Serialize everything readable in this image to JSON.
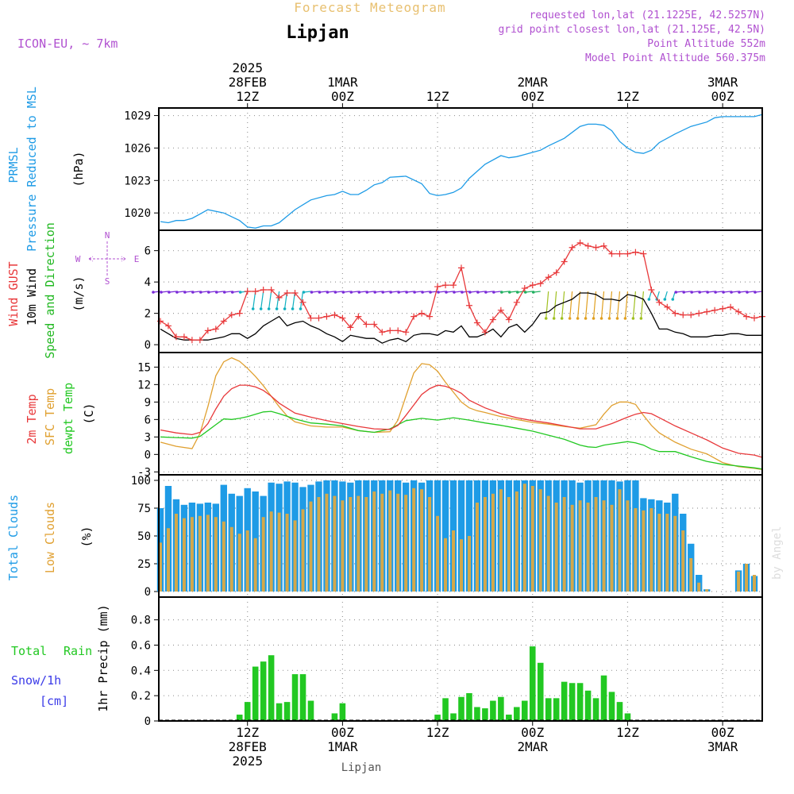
{
  "header": {
    "title": "Forecast Meteogram",
    "location": "Lipjan",
    "model": "ICON-EU, ~ 7km",
    "requested": "requested lon,lat (21.1225E, 42.5257N)",
    "gridpoint": "grid point closest lon,lat (21.125E, 42.5N)",
    "altitude": "Point Altitude 552m",
    "model_altitude": "Model Point Altitude 560.375m",
    "footer_location": "Lipjan",
    "credit": "by Angel"
  },
  "colors": {
    "pressure": "#1e9be6",
    "gust": "#e8383a",
    "wind": "#000000",
    "windlabel": "#22b822",
    "temp": "#e8383a",
    "sfc": "#e0a030",
    "dewpt": "#22c822",
    "totalcloud": "#1e9be6",
    "lowcloud": "#d4a84a",
    "rain": "#22c822",
    "snow": "#3a3ae8",
    "header": "#b050d0",
    "titlecolor": "#e8c070"
  },
  "time_axis": {
    "top_ticks": [
      {
        "h": 12,
        "lines": [
          "2025",
          "28FEB",
          "12Z"
        ]
      },
      {
        "h": 24,
        "lines": [
          "1MAR",
          "00Z"
        ]
      },
      {
        "h": 36,
        "lines": [
          "12Z"
        ]
      },
      {
        "h": 48,
        "lines": [
          "2MAR",
          "00Z"
        ]
      },
      {
        "h": 60,
        "lines": [
          "12Z"
        ]
      },
      {
        "h": 72,
        "lines": [
          "3MAR",
          "00Z"
        ]
      }
    ],
    "bottom_ticks": [
      {
        "h": 12,
        "lines": [
          "12Z",
          "28FEB",
          "2025"
        ]
      },
      {
        "h": 24,
        "lines": [
          "00Z",
          "1MAR"
        ]
      },
      {
        "h": 36,
        "lines": [
          "12Z"
        ]
      },
      {
        "h": 48,
        "lines": [
          "00Z",
          "2MAR"
        ]
      },
      {
        "h": 60,
        "lines": [
          "12Z"
        ]
      },
      {
        "h": 72,
        "lines": [
          "00Z",
          "3MAR"
        ]
      }
    ]
  },
  "panels": {
    "pressure": {
      "labels": [
        "PRMSL",
        "Pressure Reduced to MSL",
        "(hPa)"
      ],
      "ticks": [
        "1020",
        "1023",
        "1026",
        "1029"
      ]
    },
    "wind": {
      "labels": [
        "Wind GUST",
        "10m Wind",
        "Speed and Direction",
        "(m/s)"
      ],
      "ticks": [
        "0",
        "2",
        "4",
        "6"
      ],
      "compass": [
        "N",
        "W",
        "E",
        "S"
      ]
    },
    "temp": {
      "labels": [
        "2m Temp",
        "SFC Temp",
        "dewpt Temp",
        "(C)"
      ],
      "ticks": [
        "-3",
        "0",
        "3",
        "6",
        "9",
        "12",
        "15"
      ]
    },
    "cloud": {
      "labels": [
        "Total Clouds",
        "Low Clouds",
        "(%)"
      ],
      "ticks": [
        "0",
        "25",
        "50",
        "75",
        "100"
      ]
    },
    "precip": {
      "labels": [
        "Total",
        "Rain",
        "Snow/1h",
        "[cm]",
        "1hr Precip (mm)"
      ],
      "ticks": [
        "0",
        "0.2",
        "0.4",
        "0.6",
        "0.8"
      ]
    }
  },
  "chart_data": {
    "type": "meteogram",
    "x_unit": "hours from 28FEB 00Z",
    "x_range": [
      0.8,
      77
    ],
    "pressure": {
      "series_name": "PRMSL",
      "ylim": [
        1018.4,
        1029.7
      ],
      "x": [
        1,
        2,
        3,
        4,
        5,
        7,
        9,
        11,
        12,
        13,
        14,
        15,
        16,
        18,
        20,
        22,
        23,
        24,
        25,
        26,
        27,
        28,
        29,
        30,
        32,
        34,
        35,
        36,
        37,
        38,
        39,
        40,
        42,
        44,
        45,
        46,
        47,
        48,
        49,
        50,
        52,
        54,
        55,
        56,
        57,
        58,
        59,
        60,
        61,
        62,
        63,
        64,
        66,
        68,
        70,
        71,
        72,
        74,
        76,
        77
      ],
      "y": [
        1019.2,
        1019.1,
        1019.3,
        1019.3,
        1019.5,
        1020.3,
        1020.0,
        1019.3,
        1018.7,
        1018.6,
        1018.8,
        1018.8,
        1019.1,
        1020.3,
        1021.2,
        1021.6,
        1021.7,
        1022.0,
        1021.7,
        1021.7,
        1022.1,
        1022.6,
        1022.8,
        1023.3,
        1023.4,
        1022.7,
        1021.8,
        1021.6,
        1021.7,
        1021.9,
        1022.3,
        1023.2,
        1024.5,
        1025.3,
        1025.1,
        1025.2,
        1025.4,
        1025.6,
        1025.8,
        1026.2,
        1026.9,
        1028.0,
        1028.2,
        1028.2,
        1028.1,
        1027.6,
        1026.6,
        1026.0,
        1025.6,
        1025.5,
        1025.8,
        1026.5,
        1027.3,
        1028.0,
        1028.4,
        1028.8,
        1028.9,
        1028.9,
        1028.9,
        1029.1
      ]
    },
    "wind": {
      "ylim": [
        -0.5,
        7.3
      ],
      "gust": {
        "name": "Wind GUST",
        "x": [
          1,
          2,
          3,
          4,
          5,
          6,
          7,
          8,
          9,
          10,
          11,
          12,
          13,
          14,
          15,
          16,
          17,
          18,
          19,
          20,
          21,
          22,
          23,
          24,
          25,
          26,
          27,
          28,
          29,
          30,
          31,
          32,
          33,
          34,
          35,
          36,
          37,
          38,
          39,
          40,
          41,
          42,
          43,
          44,
          45,
          46,
          47,
          48,
          49,
          50,
          51,
          52,
          53,
          54,
          55,
          56,
          57,
          58,
          59,
          60,
          61,
          62,
          63,
          64,
          65,
          66,
          67,
          68,
          69,
          70,
          71,
          72,
          73,
          74,
          75,
          76,
          77
        ],
        "y": [
          1.5,
          1.2,
          0.5,
          0.5,
          0.3,
          0.3,
          0.9,
          1.0,
          1.5,
          1.9,
          2.0,
          3.4,
          3.4,
          3.5,
          3.5,
          3.0,
          3.3,
          3.3,
          2.7,
          1.7,
          1.7,
          1.8,
          1.9,
          1.7,
          1.1,
          1.8,
          1.3,
          1.3,
          0.8,
          0.9,
          0.9,
          0.8,
          1.8,
          2.0,
          1.8,
          3.7,
          3.8,
          3.8,
          4.9,
          2.5,
          1.4,
          0.8,
          1.6,
          2.2,
          1.6,
          2.7,
          3.6,
          3.8,
          3.9,
          4.3,
          4.6,
          5.3,
          6.2,
          6.5,
          6.3,
          6.2,
          6.3,
          5.8,
          5.8,
          5.8,
          5.9,
          5.8,
          3.5,
          2.7,
          2.4,
          2.0,
          1.9,
          1.9,
          2.0,
          2.1,
          2.2,
          2.3,
          2.4,
          2.1,
          1.8,
          1.7,
          1.8
        ]
      },
      "speed": {
        "name": "10m Wind",
        "x": [
          1,
          2,
          3,
          4,
          5,
          6,
          7,
          8,
          9,
          10,
          11,
          12,
          13,
          14,
          15,
          16,
          17,
          18,
          19,
          20,
          21,
          22,
          23,
          24,
          25,
          26,
          27,
          28,
          29,
          30,
          31,
          32,
          33,
          34,
          35,
          36,
          37,
          38,
          39,
          40,
          41,
          42,
          43,
          44,
          45,
          46,
          47,
          48,
          49,
          50,
          51,
          52,
          53,
          54,
          55,
          56,
          57,
          58,
          59,
          60,
          61,
          62,
          63,
          64,
          65,
          66,
          67,
          68,
          69,
          70,
          71,
          72,
          73,
          74,
          75,
          76,
          77
        ],
        "y": [
          1.0,
          0.7,
          0.4,
          0.3,
          0.3,
          0.3,
          0.3,
          0.4,
          0.5,
          0.7,
          0.7,
          0.4,
          0.7,
          1.2,
          1.5,
          1.8,
          1.2,
          1.4,
          1.5,
          1.2,
          1.0,
          0.7,
          0.5,
          0.2,
          0.6,
          0.5,
          0.4,
          0.4,
          0.1,
          0.3,
          0.4,
          0.2,
          0.6,
          0.7,
          0.7,
          0.6,
          0.9,
          0.8,
          1.2,
          0.5,
          0.5,
          0.7,
          1.0,
          0.5,
          1.1,
          1.3,
          0.8,
          1.3,
          2.0,
          2.1,
          2.5,
          2.7,
          2.9,
          3.3,
          3.3,
          3.2,
          2.9,
          2.9,
          2.8,
          3.2,
          3.1,
          2.9,
          2.0,
          1.0,
          1.0,
          0.8,
          0.7,
          0.5,
          0.5,
          0.5,
          0.6,
          0.6,
          0.7,
          0.7,
          0.6,
          0.6,
          0.6
        ]
      }
    },
    "temp": {
      "ylim": [
        -3.5,
        17.5
      ],
      "t2m": {
        "name": "2m Temp",
        "x": [
          1,
          3,
          5,
          6,
          7,
          8,
          9,
          10,
          11,
          12,
          13,
          14,
          15,
          16,
          18,
          20,
          22,
          24,
          26,
          28,
          30,
          31,
          32,
          33,
          34,
          35,
          36,
          37,
          38,
          39,
          40,
          42,
          44,
          46,
          48,
          50,
          52,
          54,
          56,
          58,
          60,
          61,
          62,
          63,
          64,
          66,
          68,
          70,
          72,
          74,
          76,
          77
        ],
        "y": [
          4.2,
          3.7,
          3.4,
          3.8,
          5.3,
          7.8,
          10.0,
          11.3,
          11.9,
          11.9,
          11.6,
          11.0,
          10.0,
          8.8,
          7.1,
          6.4,
          5.8,
          5.3,
          4.8,
          4.4,
          4.3,
          5.0,
          6.7,
          8.5,
          10.3,
          11.3,
          11.9,
          11.7,
          11.2,
          10.5,
          9.3,
          8.0,
          7.0,
          6.3,
          5.8,
          5.4,
          4.9,
          4.4,
          4.4,
          5.3,
          6.4,
          6.9,
          7.2,
          7.0,
          6.3,
          4.9,
          3.7,
          2.5,
          1.1,
          0.2,
          -0.1,
          -0.5
        ]
      },
      "sfc": {
        "name": "SFC Temp",
        "x": [
          1,
          3,
          5,
          6,
          7,
          8,
          9,
          10,
          11,
          12,
          13,
          14,
          15,
          16,
          17,
          18,
          20,
          22,
          24,
          26,
          28,
          30,
          31,
          32,
          33,
          34,
          35,
          36,
          37,
          38,
          39,
          40,
          41,
          42,
          44,
          46,
          48,
          50,
          52,
          54,
          56,
          57,
          58,
          59,
          60,
          61,
          62,
          63,
          64,
          66,
          68,
          70,
          72,
          74,
          76,
          77
        ],
        "y": [
          2.1,
          1.4,
          1.0,
          3.6,
          8.2,
          13.5,
          15.9,
          16.6,
          16.0,
          14.8,
          13.4,
          11.8,
          10.0,
          8.2,
          6.6,
          5.6,
          4.9,
          4.7,
          4.7,
          4.1,
          3.8,
          3.9,
          5.9,
          10.0,
          14.0,
          15.6,
          15.4,
          14.3,
          12.4,
          10.7,
          9.0,
          8.0,
          7.5,
          7.2,
          6.5,
          6.0,
          5.5,
          5.2,
          4.8,
          4.5,
          5.1,
          6.9,
          8.4,
          9.0,
          9.0,
          8.6,
          6.7,
          5.0,
          3.7,
          2.1,
          0.9,
          0.1,
          -1.4,
          -2.1,
          -2.4,
          -2.6
        ]
      },
      "dewpt": {
        "name": "dewpt Temp",
        "x": [
          1,
          3,
          5,
          6,
          7,
          8,
          9,
          10,
          11,
          12,
          13,
          14,
          15,
          16,
          18,
          20,
          22,
          24,
          26,
          28,
          30,
          32,
          34,
          36,
          38,
          40,
          42,
          44,
          46,
          48,
          50,
          52,
          54,
          55,
          56,
          57,
          58,
          60,
          61,
          62,
          63,
          64,
          66,
          68,
          70,
          72,
          74,
          76,
          77
        ],
        "y": [
          3.0,
          2.9,
          2.8,
          3.1,
          4.1,
          5.1,
          6.1,
          6.0,
          6.2,
          6.5,
          6.9,
          7.3,
          7.4,
          7.0,
          6.1,
          5.4,
          5.2,
          4.9,
          4.1,
          3.8,
          4.4,
          5.8,
          6.2,
          5.9,
          6.3,
          5.9,
          5.4,
          5.0,
          4.5,
          4.0,
          3.3,
          2.6,
          1.6,
          1.3,
          1.2,
          1.6,
          1.8,
          2.2,
          2.0,
          1.6,
          0.9,
          0.5,
          0.5,
          -0.4,
          -1.2,
          -1.7,
          -2.0,
          -2.3,
          -2.5
        ]
      }
    },
    "clouds": {
      "ylim": [
        -5,
        105
      ],
      "x": [
        1,
        2,
        3,
        4,
        5,
        6,
        7,
        8,
        9,
        10,
        11,
        12,
        13,
        14,
        15,
        16,
        17,
        18,
        19,
        20,
        21,
        22,
        23,
        24,
        25,
        26,
        27,
        28,
        29,
        30,
        31,
        32,
        33,
        34,
        35,
        36,
        37,
        38,
        39,
        40,
        41,
        42,
        43,
        44,
        45,
        46,
        47,
        48,
        49,
        50,
        51,
        52,
        53,
        54,
        55,
        56,
        57,
        58,
        59,
        60,
        61,
        62,
        63,
        64,
        65,
        66,
        67,
        68,
        69,
        70,
        71,
        72,
        73,
        74,
        75,
        76,
        77
      ],
      "total": [
        75,
        95,
        83,
        78,
        80,
        79,
        80,
        79,
        96,
        88,
        86,
        93,
        90,
        86,
        98,
        97,
        99,
        98,
        94,
        96,
        99,
        100,
        100,
        99,
        98,
        100,
        100,
        100,
        100,
        100,
        100,
        98,
        100,
        98,
        100,
        100,
        100,
        100,
        100,
        100,
        100,
        100,
        100,
        100,
        100,
        100,
        100,
        100,
        100,
        100,
        100,
        100,
        100,
        98,
        100,
        100,
        100,
        100,
        99,
        100,
        100,
        84,
        83,
        82,
        80,
        88,
        70,
        43,
        15,
        2,
        0,
        0,
        0,
        19,
        25,
        14,
        0
      ],
      "low": [
        44,
        57,
        70,
        66,
        67,
        68,
        69,
        67,
        63,
        58,
        52,
        55,
        48,
        67,
        72,
        71,
        70,
        64,
        74,
        81,
        85,
        88,
        86,
        82,
        85,
        86,
        85,
        90,
        88,
        91,
        88,
        87,
        93,
        92,
        85,
        68,
        48,
        55,
        47,
        50,
        80,
        85,
        88,
        92,
        85,
        90,
        97,
        95,
        92,
        86,
        80,
        85,
        78,
        82,
        80,
        85,
        82,
        78,
        92,
        82,
        75,
        73,
        75,
        70,
        70,
        68,
        55,
        30,
        8,
        2,
        0,
        0,
        0,
        18,
        25,
        15,
        0
      ]
    },
    "precip": {
      "ylim": [
        0,
        0.98
      ],
      "x": [
        11,
        12,
        13,
        14,
        15,
        16,
        17,
        18,
        19,
        20,
        21,
        22,
        23,
        24,
        25,
        26,
        27,
        28,
        29,
        30,
        31,
        32,
        33,
        34,
        35,
        36,
        37,
        38,
        39,
        40,
        41,
        42,
        43,
        44,
        45,
        46,
        47,
        48,
        49,
        50,
        51,
        52,
        53,
        54,
        55,
        56,
        57,
        58,
        59,
        60,
        61,
        62
      ],
      "rain": [
        0.05,
        0.15,
        0.43,
        0.47,
        0.52,
        0.14,
        0.15,
        0.37,
        0.37,
        0.16,
        0,
        0,
        0.06,
        0.14,
        0,
        0,
        0,
        0,
        0,
        0,
        0,
        0,
        0,
        0,
        0,
        0.05,
        0.18,
        0.06,
        0.19,
        0.22,
        0.11,
        0.1,
        0.16,
        0.19,
        0.05,
        0.11,
        0.16,
        0.59,
        0.46,
        0.18,
        0.18,
        0.31,
        0.3,
        0.3,
        0.24,
        0.18,
        0.36,
        0.23,
        0.15,
        0.06,
        0,
        0
      ],
      "snow": []
    }
  }
}
